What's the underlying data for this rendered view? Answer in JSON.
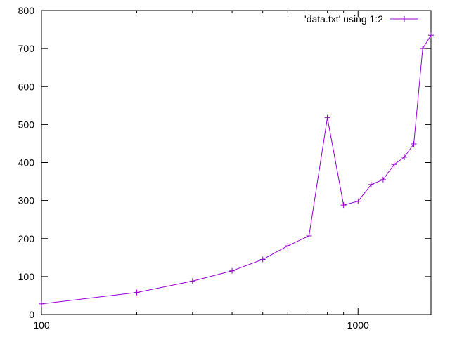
{
  "chart_data": {
    "type": "line",
    "x_scale": "log",
    "xlim": [
      100,
      1700
    ],
    "ylim": [
      0,
      800
    ],
    "x_ticks": [
      {
        "value": 100,
        "label": "100"
      },
      {
        "value": 1000,
        "label": "1000"
      }
    ],
    "y_ticks": [
      {
        "value": 0,
        "label": "0"
      },
      {
        "value": 100,
        "label": "100"
      },
      {
        "value": 200,
        "label": "200"
      },
      {
        "value": 300,
        "label": "300"
      },
      {
        "value": 400,
        "label": "400"
      },
      {
        "value": 500,
        "label": "500"
      },
      {
        "value": 600,
        "label": "600"
      },
      {
        "value": 700,
        "label": "700"
      },
      {
        "value": 800,
        "label": "800"
      }
    ],
    "grid": false,
    "legend_position": "top-right",
    "series": [
      {
        "name": "'data.txt' using 1:2",
        "color": "#9400d3",
        "marker": "plus",
        "x": [
          100,
          200,
          300,
          400,
          500,
          600,
          700,
          800,
          900,
          1000,
          1100,
          1200,
          1300,
          1400,
          1500,
          1600,
          1700
        ],
        "y": [
          28,
          58,
          88,
          115,
          145,
          181,
          207,
          518,
          288,
          298,
          342,
          355,
          395,
          414,
          449,
          700,
          735
        ]
      }
    ]
  }
}
